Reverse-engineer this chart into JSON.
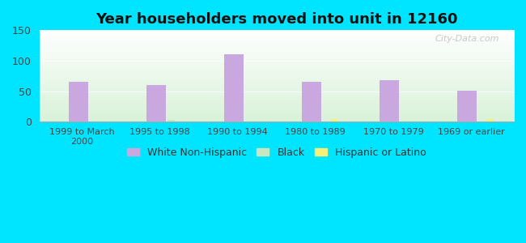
{
  "title": "Year householders moved into unit in 12160",
  "categories": [
    "1999 to March\n2000",
    "1995 to 1998",
    "1990 to 1994",
    "1980 to 1989",
    "1970 to 1979",
    "1969 or earlier"
  ],
  "white_values": [
    65,
    60,
    110,
    65,
    68,
    51
  ],
  "black_values": [
    0,
    3,
    0,
    0,
    0,
    0
  ],
  "hispanic_values": [
    0,
    0,
    0,
    4,
    0,
    4
  ],
  "white_color": "#c9a8e0",
  "black_color": "#c8e6c0",
  "hispanic_color": "#f5f07a",
  "background_outer": "#00e5ff",
  "ylim": [
    0,
    150
  ],
  "yticks": [
    0,
    50,
    100,
    150
  ],
  "bar_width": 0.25,
  "title_fontsize": 13,
  "watermark": "City-Data.com"
}
